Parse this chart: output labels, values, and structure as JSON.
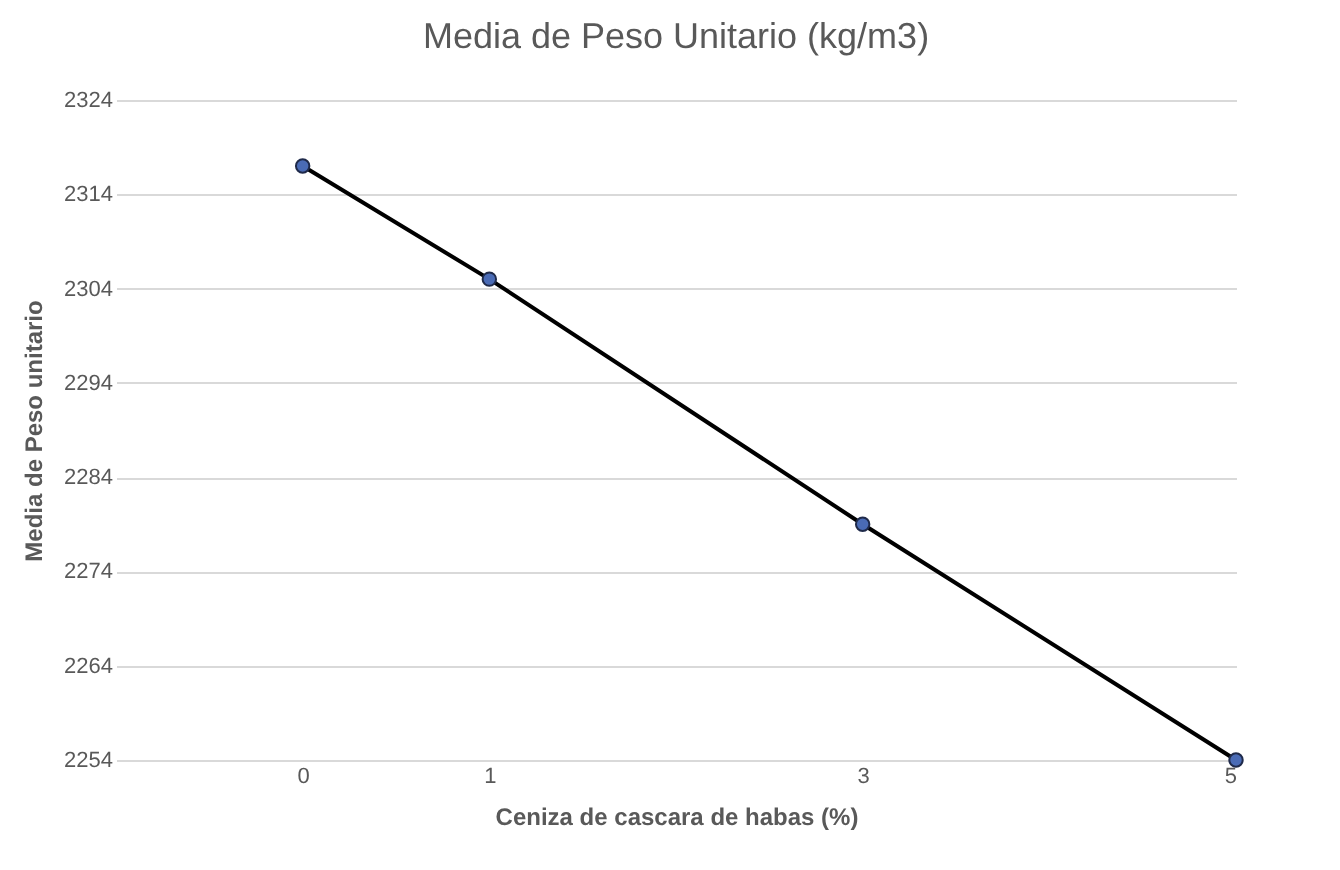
{
  "chart_data": {
    "type": "line",
    "title": "Media de Peso Unitario (kg/m3)",
    "xlabel": "Ceniza de cascara de habas (%)",
    "ylabel": "Media de Peso unitario",
    "x": [
      0,
      1,
      3,
      5
    ],
    "series": [
      {
        "color": "#000000",
        "values": [
          2317,
          2305,
          2279,
          2254
        ]
      }
    ],
    "xlim": [
      -1,
      5
    ],
    "xticks": [
      0,
      1,
      3,
      5
    ],
    "ylim": [
      2254,
      2324
    ],
    "yticks": [
      2254,
      2264,
      2274,
      2284,
      2294,
      2304,
      2314,
      2324
    ],
    "grid": "y",
    "marker": "circle",
    "line_style": "solid"
  }
}
